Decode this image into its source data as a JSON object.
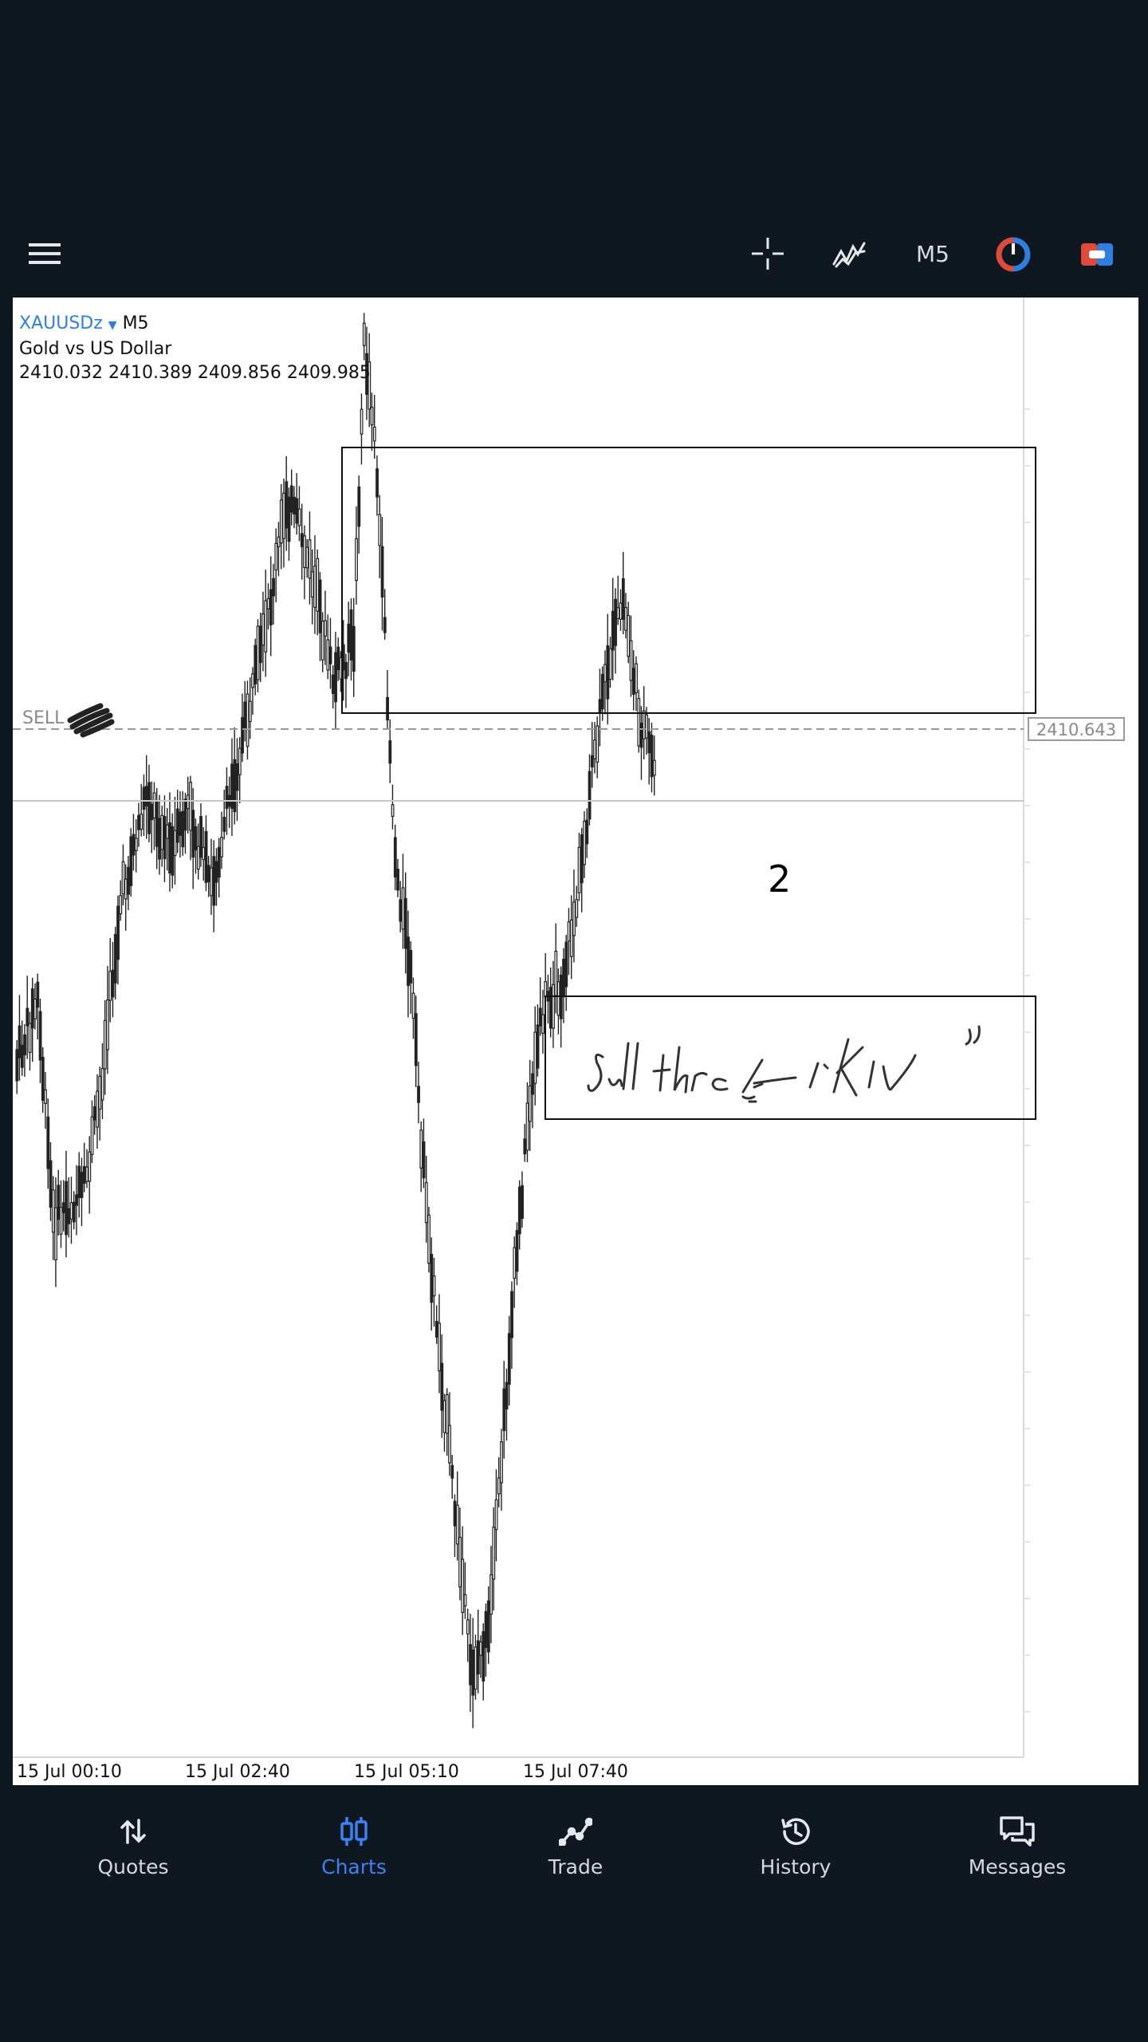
{
  "toolbar": {
    "menu_icon": "hamburger-menu-icon",
    "crosshair_icon": "crosshair-icon",
    "indicators_icon": "indicators-icon",
    "timeframe": "M5",
    "chart_type_icon": "theme-circle-icon",
    "trade_panel_icon": "one-click-trading-icon"
  },
  "chart": {
    "symbol": "XAUUSDz",
    "timeframe": "M5",
    "description": "Gold vs US Dollar",
    "ohlc": "2410.032 2410.389 2409.856 2409.985",
    "sell_label": "SELL",
    "price_tag": "2410.643",
    "annotation_number": "2",
    "handwritten_note": "Sell threat \"KIV\"",
    "time_labels": [
      "15 Jul 00:10",
      "15 Jul 02:40",
      "15 Jul 05:10",
      "15 Jul 07:40"
    ]
  },
  "chart_data": {
    "type": "candlestick",
    "symbol": "XAUUSDz",
    "timeframe": "M5",
    "x_ticks": [
      "15 Jul 00:10",
      "15 Jul 02:40",
      "15 Jul 05:10",
      "15 Jul 07:40"
    ],
    "last_ohlc": {
      "open": 2410.032,
      "high": 2410.389,
      "low": 2409.856,
      "close": 2409.985
    },
    "sell_price": 2410.643,
    "grid": false,
    "legend": "none"
  },
  "nav": {
    "items": [
      {
        "label": "Quotes",
        "icon": "quotes-arrows-icon"
      },
      {
        "label": "Charts",
        "icon": "charts-candles-icon"
      },
      {
        "label": "Trade",
        "icon": "trade-line-icon"
      },
      {
        "label": "History",
        "icon": "history-clock-icon"
      },
      {
        "label": "Messages",
        "icon": "messages-bubbles-icon"
      }
    ],
    "active": "Charts",
    "active_color": "#3b82f6"
  }
}
